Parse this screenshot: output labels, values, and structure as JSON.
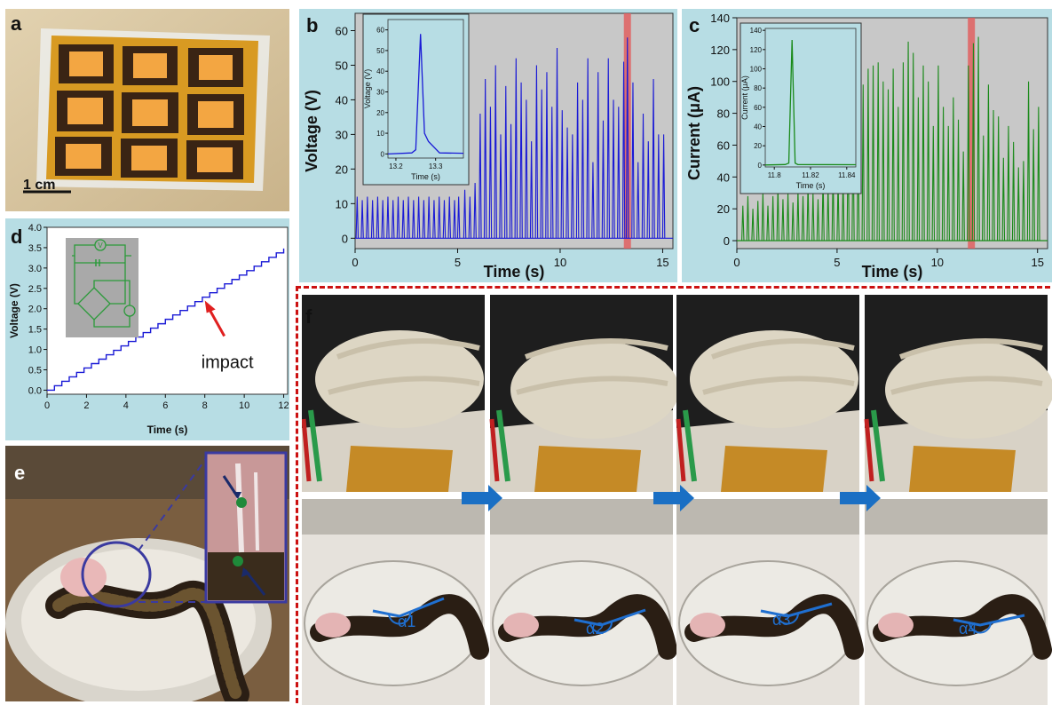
{
  "panels": {
    "a": {
      "label": "a",
      "scalebar": "1 cm"
    },
    "b": {
      "label": "b"
    },
    "c": {
      "label": "c"
    },
    "d": {
      "label": "d",
      "annotation": "impact"
    },
    "e": {
      "label": "e"
    },
    "f": {
      "label": "f",
      "angles": [
        "α1",
        "α2",
        "α3",
        "α4"
      ]
    }
  },
  "colors": {
    "plot_bg": "#c8c8c8",
    "panel_bg": "#b7dde4",
    "voltage_series": "#1a1ad6",
    "current_series": "#1a8a1a",
    "highlight": "#e06060",
    "dash_border": "#cc1111",
    "arrow": "#1a6fc4",
    "angle_mark": "#1f6fd0"
  },
  "chart_data": [
    {
      "id": "b",
      "type": "line",
      "xlabel": "Time (s)",
      "ylabel": "Voltage (V)",
      "xlim": [
        0,
        15.5
      ],
      "ylim": [
        -3,
        65
      ],
      "xticks": [
        0,
        5,
        10,
        15
      ],
      "yticks": [
        0,
        10,
        20,
        30,
        40,
        50,
        60
      ],
      "highlight_x": 13.28,
      "peaks_x": [
        0.1,
        0.35,
        0.6,
        0.85,
        1.1,
        1.35,
        1.6,
        1.85,
        2.1,
        2.35,
        2.6,
        2.85,
        3.1,
        3.35,
        3.6,
        3.85,
        4.1,
        4.35,
        4.6,
        4.85,
        5.05,
        5.35,
        5.6,
        5.85,
        6.1,
        6.35,
        6.6,
        6.85,
        7.1,
        7.35,
        7.6,
        7.85,
        8.1,
        8.35,
        8.6,
        8.85,
        9.1,
        9.35,
        9.6,
        9.85,
        10.1,
        10.35,
        10.6,
        10.85,
        11.1,
        11.35,
        11.6,
        11.85,
        12.1,
        12.35,
        12.6,
        12.85,
        13.1,
        13.28,
        13.55,
        13.8,
        14.05,
        14.3,
        14.55,
        14.8,
        15.05
      ],
      "peaks_y": [
        12,
        11,
        12,
        11,
        12,
        11,
        12,
        11,
        12,
        11,
        12,
        11,
        12,
        11,
        12,
        11,
        12,
        11,
        12,
        11,
        12,
        14,
        12,
        16,
        36,
        46,
        38,
        50,
        30,
        44,
        33,
        52,
        45,
        40,
        28,
        50,
        43,
        48,
        38,
        55,
        37,
        32,
        30,
        45,
        40,
        52,
        22,
        48,
        34,
        52,
        40,
        38,
        51,
        58,
        45,
        22,
        36,
        28,
        46,
        30,
        30
      ],
      "inset": {
        "xlabel": "Time (s)",
        "ylabel": "Voltage (V)",
        "xlim": [
          13.18,
          13.37
        ],
        "ylim": [
          -2,
          65
        ],
        "xticks": [
          13.2,
          13.3
        ],
        "yticks": [
          0,
          10,
          20,
          30,
          40,
          50,
          60
        ],
        "x": [
          13.18,
          13.24,
          13.25,
          13.262,
          13.272,
          13.282,
          13.31,
          13.37
        ],
        "y": [
          0,
          0.5,
          2,
          58,
          10,
          6,
          0.5,
          0.3
        ]
      }
    },
    {
      "id": "c",
      "type": "line",
      "xlabel": "Time (s)",
      "ylabel": "Current (μA)",
      "xlim": [
        0,
        15.5
      ],
      "ylim": [
        -5,
        140
      ],
      "xticks": [
        0,
        5,
        10,
        15
      ],
      "yticks": [
        0,
        20,
        40,
        60,
        80,
        100,
        120,
        140
      ],
      "highlight_x": 11.7,
      "peaks_x": [
        0.3,
        0.55,
        0.8,
        1.05,
        1.3,
        1.55,
        1.8,
        2.05,
        2.3,
        2.55,
        2.8,
        3.05,
        3.3,
        3.55,
        3.8,
        4.05,
        4.3,
        4.55,
        4.8,
        5.05,
        5.3,
        5.55,
        5.8,
        6.05,
        6.3,
        6.55,
        6.8,
        7.05,
        7.3,
        7.55,
        7.8,
        8.05,
        8.3,
        8.55,
        8.8,
        9.05,
        9.3,
        9.55,
        9.8,
        10.05,
        10.3,
        10.55,
        10.8,
        11.05,
        11.3,
        11.55,
        11.8,
        12.05,
        12.3,
        12.55,
        12.8,
        13.05,
        13.3,
        13.55,
        13.8,
        14.05,
        14.3,
        14.55,
        14.8,
        15.05
      ],
      "peaks_y": [
        22,
        28,
        20,
        25,
        30,
        22,
        28,
        34,
        26,
        30,
        24,
        32,
        28,
        36,
        30,
        26,
        40,
        34,
        44,
        38,
        40,
        62,
        70,
        60,
        98,
        108,
        110,
        112,
        100,
        95,
        108,
        84,
        112,
        125,
        118,
        90,
        110,
        100,
        72,
        110,
        84,
        72,
        90,
        76,
        56,
        110,
        124,
        128,
        66,
        98,
        82,
        78,
        52,
        72,
        62,
        46,
        50,
        100,
        70,
        84
      ],
      "inset": {
        "xlabel": "Time (s)",
        "ylabel": "Current (μA)",
        "xlim": [
          11.795,
          11.845
        ],
        "ylim": [
          -2,
          142
        ],
        "xticks": [
          11.8,
          11.82,
          11.84
        ],
        "yticks": [
          0,
          20,
          40,
          60,
          80,
          100,
          120,
          140
        ],
        "x": [
          11.795,
          11.806,
          11.808,
          11.8098,
          11.8115,
          11.813,
          11.845
        ],
        "y": [
          0,
          0.5,
          2,
          130,
          2,
          0.5,
          0.3
        ]
      }
    },
    {
      "id": "d",
      "type": "line",
      "xlabel": "Time (s)",
      "ylabel": "Voltage (V)",
      "xlim": [
        0,
        12.2
      ],
      "ylim": [
        -0.1,
        4.0
      ],
      "xticks": [
        0,
        2,
        4,
        6,
        8,
        10,
        12
      ],
      "yticks": [
        0.0,
        0.5,
        1.0,
        1.5,
        2.0,
        2.5,
        3.0,
        3.5,
        4.0
      ],
      "step_start": [
        0,
        0.0
      ],
      "step_end": [
        12,
        3.48
      ],
      "num_steps": 32,
      "annotation_point": [
        8.0,
        2.2
      ]
    }
  ]
}
